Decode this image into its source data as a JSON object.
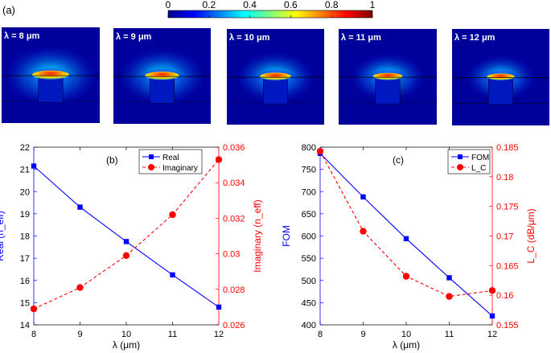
{
  "panel_a": {
    "label": "(a)",
    "colorbar": {
      "min": 0,
      "max": 1,
      "ticks": [
        "0",
        "0.2",
        "0.4",
        "0.6",
        "0.8",
        "1"
      ]
    },
    "maps": [
      {
        "label": "λ = 8 μm",
        "field_scale": 1.0
      },
      {
        "label": "λ = 9 μm",
        "field_scale": 0.93
      },
      {
        "label": "λ = 10 μm",
        "field_scale": 0.85
      },
      {
        "label": "λ = 11 μm",
        "field_scale": 0.8
      },
      {
        "label": "λ = 12 μm",
        "field_scale": 0.75
      }
    ]
  },
  "chart_data": [
    {
      "type": "line",
      "panel_label": "(b)",
      "xlabel": "λ (μm)",
      "x": [
        8,
        9,
        10,
        11,
        12
      ],
      "xticks": [
        "8",
        "9",
        "10",
        "11",
        "12"
      ],
      "xlim": [
        8,
        12
      ],
      "ylabel_left": "Real (n_eff)",
      "ylim_left": [
        14,
        22
      ],
      "yticks_left": [
        "14",
        "15",
        "16",
        "17",
        "18",
        "19",
        "20",
        "21",
        "22"
      ],
      "ylabel_right": "Imaginary (n_eff)",
      "ylim_right": [
        0.026,
        0.036
      ],
      "yticks_right": [
        "0.026",
        "0.028",
        "0.03",
        "0.032",
        "0.034",
        "0.036"
      ],
      "legend_position": "top-right",
      "series": [
        {
          "name": "Real",
          "axis": "left",
          "color": "#0000ff",
          "marker": "square",
          "line": "solid",
          "values": [
            21.15,
            19.3,
            17.75,
            16.25,
            14.8
          ]
        },
        {
          "name": "Imaginary",
          "axis": "right",
          "color": "#ff0000",
          "marker": "circle",
          "line": "dashed",
          "values": [
            0.0269,
            0.0281,
            0.0299,
            0.0322,
            0.0353
          ]
        }
      ]
    },
    {
      "type": "line",
      "panel_label": "(c)",
      "xlabel": "λ (μm)",
      "x": [
        8,
        9,
        10,
        11,
        12
      ],
      "xticks": [
        "8",
        "9",
        "10",
        "11",
        "12"
      ],
      "xlim": [
        8,
        12
      ],
      "ylabel_left": "FOM",
      "ylim_left": [
        400,
        800
      ],
      "yticks_left": [
        "400",
        "450",
        "500",
        "550",
        "600",
        "650",
        "700",
        "750",
        "800"
      ],
      "ylabel_right": "L_C (dB/μm)",
      "ylim_right": [
        0.155,
        0.185
      ],
      "yticks_right": [
        "0.155",
        "0.16",
        "0.165",
        "0.17",
        "0.175",
        "0.18",
        "0.185"
      ],
      "legend_position": "top-right",
      "series": [
        {
          "name": "FOM",
          "axis": "left",
          "color": "#0000ff",
          "marker": "square",
          "line": "solid",
          "values": [
            786,
            688,
            594,
            506,
            420
          ]
        },
        {
          "name": "L_C",
          "axis": "right",
          "color": "#ff0000",
          "marker": "circle",
          "line": "dashed",
          "values": [
            0.1843,
            0.1708,
            0.1632,
            0.1598,
            0.1608
          ]
        }
      ]
    }
  ]
}
